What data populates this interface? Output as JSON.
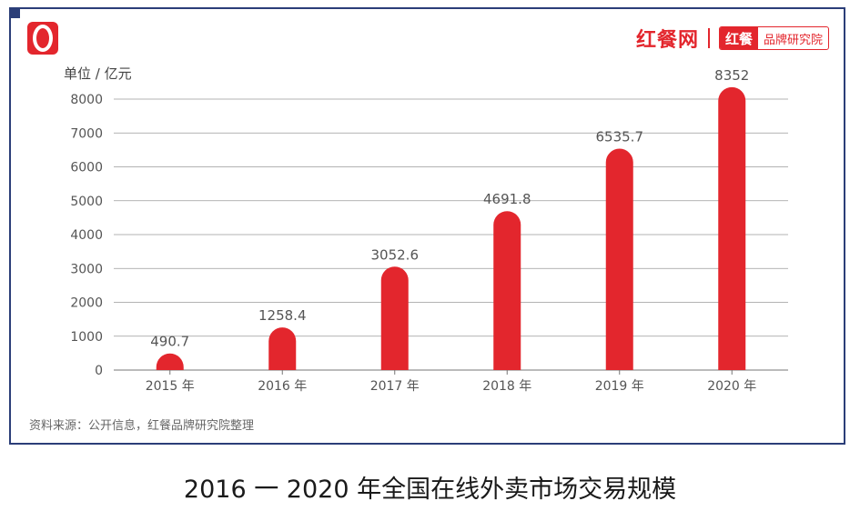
{
  "brand": {
    "name": "红餐网",
    "box_left": "红餐",
    "box_right": "品牌研究院"
  },
  "unit_label": "单位 / 亿元",
  "source_text": "资料来源：公开信息，红餐品牌研究院整理",
  "caption": "2016 一 2020 年全国在线外卖市场交易规模",
  "colors": {
    "frame": "#2b3e78",
    "bar": "#e3262d",
    "accent": "#e3262d"
  },
  "chart_data": {
    "type": "bar",
    "categories": [
      "2015 年",
      "2016 年",
      "2017 年",
      "2018 年",
      "2019 年",
      "2020 年"
    ],
    "values": [
      490.7,
      1258.4,
      3052.6,
      4691.8,
      6535.7,
      8352
    ],
    "value_labels": [
      "490.7",
      "1258.4",
      "3052.6",
      "4691.8",
      "6535.7",
      "8352"
    ],
    "ylim": [
      0,
      8000
    ],
    "yticks": [
      0,
      1000,
      2000,
      3000,
      4000,
      5000,
      6000,
      7000,
      8000
    ],
    "ylabel": "单位 / 亿元",
    "grid": true
  }
}
